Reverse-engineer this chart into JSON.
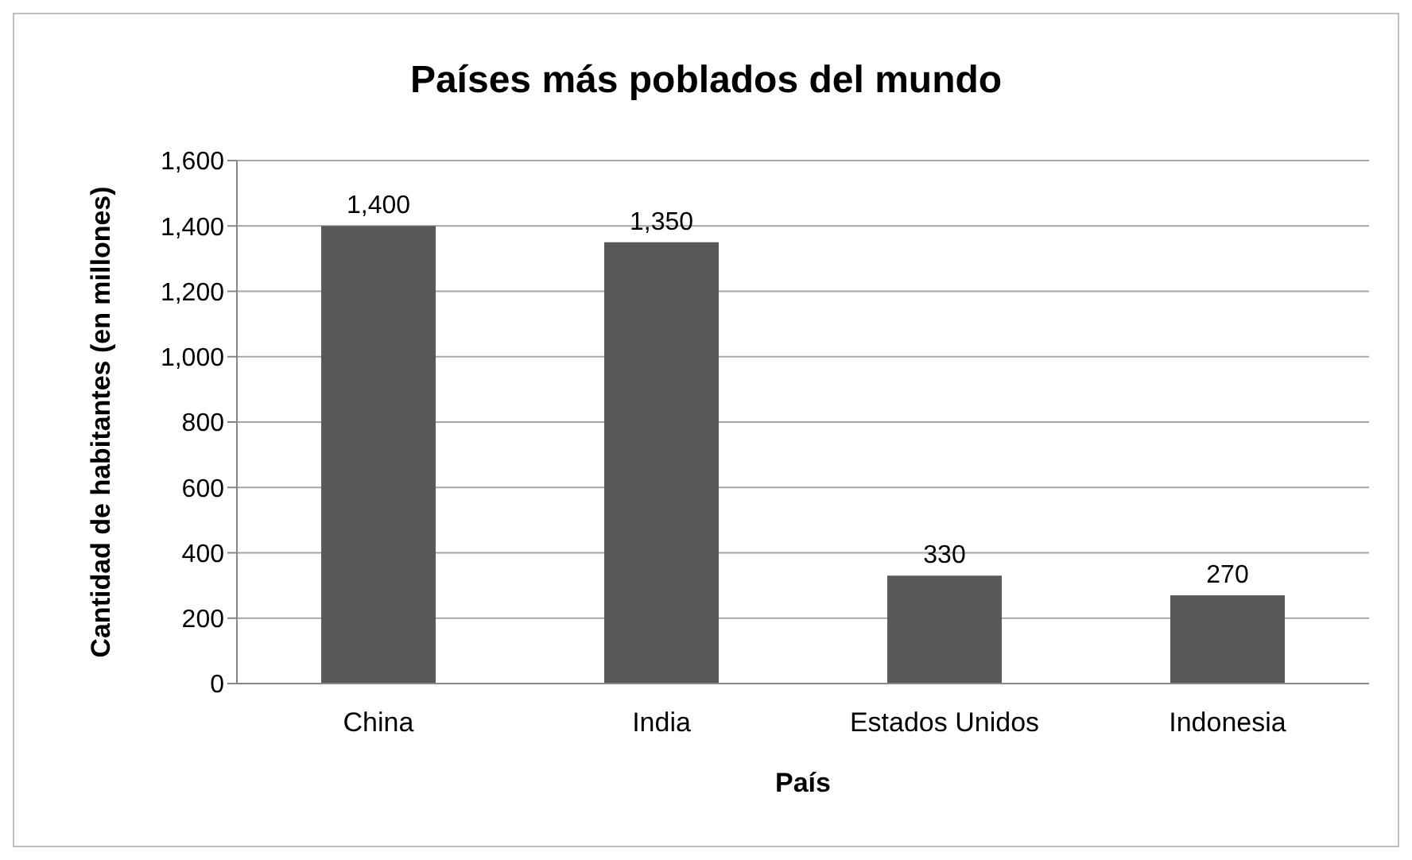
{
  "chart_data": {
    "type": "bar",
    "title": "Países más poblados del mundo",
    "xlabel": "País",
    "ylabel": "Cantidad de habitantes (en millones)",
    "categories": [
      "China",
      "India",
      "Estados Unidos",
      "Indonesia"
    ],
    "values": [
      1400,
      1350,
      330,
      270
    ],
    "value_labels": [
      "1,400",
      "1,350",
      "330",
      "270"
    ],
    "color": "#595959",
    "ylim": [
      0,
      1600
    ],
    "yticks": [
      0,
      200,
      400,
      600,
      800,
      {
        "value": 1000,
        "label": "1,000"
      },
      {
        "value": 1200,
        "label": "1,200"
      },
      {
        "value": 1400,
        "label": "1,400"
      },
      {
        "value": 1600,
        "label": "1,600"
      }
    ],
    "grid": "y",
    "legend": false
  }
}
